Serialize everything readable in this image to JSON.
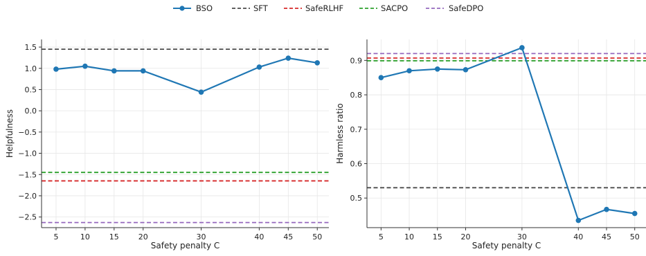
{
  "legend": [
    {
      "name": "BSO",
      "color": "#1f77b4",
      "style": "solid-marker"
    },
    {
      "name": "SFT",
      "color": "#4a4a4a",
      "style": "dashed"
    },
    {
      "name": "SafeRLHF",
      "color": "#d62728",
      "style": "dashed"
    },
    {
      "name": "SACPO",
      "color": "#2ca02c",
      "style": "dashed"
    },
    {
      "name": "SafeDPO",
      "color": "#9467bd",
      "style": "dashed"
    }
  ],
  "chart_data": [
    {
      "type": "line",
      "xlabel": "Safety penalty C",
      "ylabel": "Helpfulness",
      "x": [
        5,
        10,
        15,
        20,
        30,
        40,
        45,
        50
      ],
      "xlim": [
        2.5,
        52
      ],
      "ylim": [
        -2.75,
        1.68
      ],
      "yticks": [
        1.5,
        1.0,
        0.5,
        0.0,
        -0.5,
        -1.0,
        -1.5,
        -2.0,
        -2.5
      ],
      "ytick_labels": [
        "1.5",
        "1.0",
        "0.5",
        "0.0",
        "−0.5",
        "−1.0",
        "−1.5",
        "−2.0",
        "−2.5"
      ],
      "grid": true,
      "series": [
        {
          "name": "BSO",
          "values": [
            0.98,
            1.05,
            0.94,
            0.94,
            0.44,
            1.03,
            1.24,
            1.13
          ]
        }
      ],
      "baselines": [
        {
          "name": "SFT",
          "value": 1.45
        },
        {
          "name": "SafeRLHF",
          "value": -1.65
        },
        {
          "name": "SACPO",
          "value": -1.45
        },
        {
          "name": "SafeDPO",
          "value": -2.63
        }
      ]
    },
    {
      "type": "line",
      "xlabel": "Safety penalty C",
      "ylabel": "Harmless ratio",
      "x": [
        5,
        10,
        15,
        20,
        30,
        40,
        45,
        50
      ],
      "xlim": [
        2.5,
        52
      ],
      "ylim": [
        0.414,
        0.961
      ],
      "yticks": [
        0.9,
        0.8,
        0.7,
        0.6,
        0.5
      ],
      "ytick_labels": [
        "0.9",
        "0.8",
        "0.7",
        "0.6",
        "0.5"
      ],
      "grid": true,
      "series": [
        {
          "name": "BSO",
          "values": [
            0.85,
            0.87,
            0.875,
            0.873,
            0.937,
            0.435,
            0.467,
            0.455
          ]
        }
      ],
      "baselines": [
        {
          "name": "SFT",
          "value": 0.53
        },
        {
          "name": "SafeRLHF",
          "value": 0.907
        },
        {
          "name": "SACPO",
          "value": 0.899
        },
        {
          "name": "SafeDPO",
          "value": 0.92
        }
      ]
    }
  ]
}
